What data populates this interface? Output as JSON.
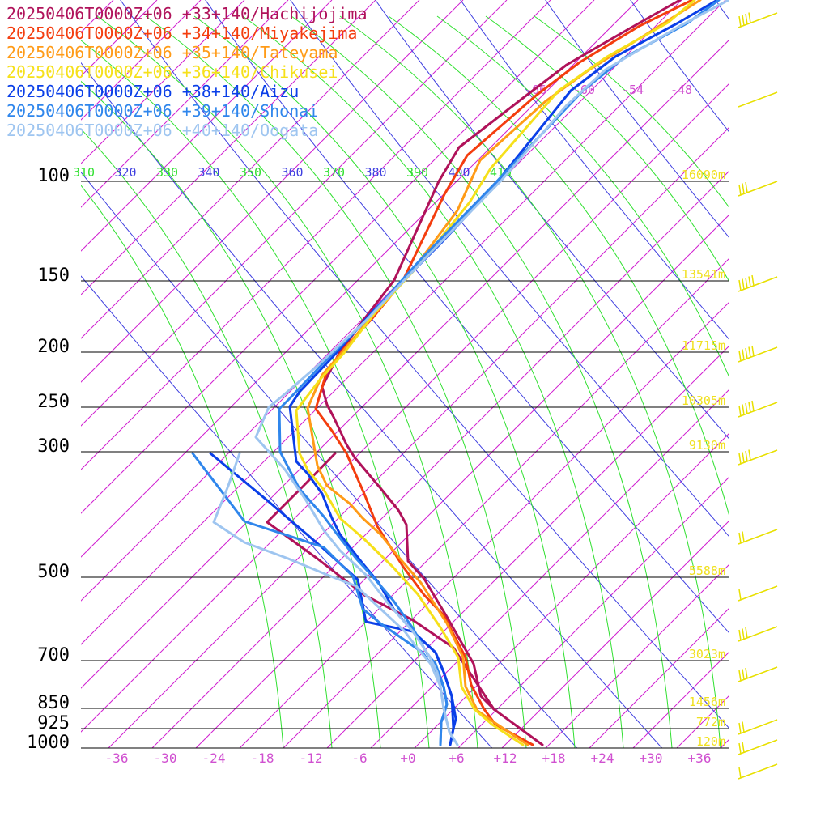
{
  "chart_data": {
    "type": "line",
    "legend": [
      {
        "label": "20250406T0000Z+06 +33+140/Hachijojima",
        "color": "#b0125a"
      },
      {
        "label": "20250406T0000Z+06 +34+140/Miyakejima",
        "color": "#f43d0e"
      },
      {
        "label": "20250406T0000Z+06 +35+140/Tateyama",
        "color": "#ff9b17"
      },
      {
        "label": "20250406T0000Z+06 +36+140/Chikusei",
        "color": "#f6e01a"
      },
      {
        "label": "20250406T0000Z+06 +38+140/Aizu",
        "color": "#0a3fe8"
      },
      {
        "label": "20250406T0000Z+06 +39+140/Shonai",
        "color": "#2f86ec"
      },
      {
        "label": "20250406T0000Z+06 +40+140/Oogata",
        "color": "#9ec5f0"
      }
    ],
    "pressure_levels": [
      {
        "p": 100,
        "label": "100",
        "height": "16090m"
      },
      {
        "p": 150,
        "label": "150",
        "height": "13541m"
      },
      {
        "p": 200,
        "label": "200",
        "height": "11715m"
      },
      {
        "p": 250,
        "label": "250",
        "height": "10305m"
      },
      {
        "p": 300,
        "label": "300",
        "height": "9130m"
      },
      {
        "p": 500,
        "label": "500",
        "height": "5588m"
      },
      {
        "p": 700,
        "label": "700",
        "height": "3023m"
      },
      {
        "p": 850,
        "label": "850",
        "height": "1456m"
      },
      {
        "p": 925,
        "label": "925",
        "height": "772m"
      },
      {
        "p": 1000,
        "label": "1000",
        "height": "120m"
      }
    ],
    "x_ticks": [
      "-36",
      "-30",
      "-24",
      "-18",
      "-12",
      "-6",
      "+0",
      "+6",
      "+12",
      "+18",
      "+24",
      "+30",
      "+36"
    ],
    "x_tick_values": [
      -36,
      -30,
      -24,
      -18,
      -12,
      -6,
      0,
      6,
      12,
      18,
      24,
      30,
      36
    ],
    "theta_labels": [
      "310",
      "320",
      "330",
      "340",
      "350",
      "360",
      "370",
      "380",
      "390",
      "400",
      "410"
    ],
    "upper_temp_labels": [
      "-66",
      "-60",
      "-54",
      "-48"
    ],
    "axis_colors": {
      "pressure_line": "#000000",
      "isotherm": "#d020d0",
      "dry_adiabat": "#4040e0",
      "moist_adiabat": "#30e030",
      "height_label": "#f0e020",
      "wind_barb": "#e8e000",
      "tick_label": "#d050d0"
    },
    "series": [
      {
        "name": "Hachijojima",
        "color": "#b0125a",
        "points": [
          [
            670,
            920
          ],
          [
            610,
            876
          ],
          [
            594,
            860
          ],
          [
            585,
            820
          ],
          [
            552,
            762
          ],
          [
            524,
            715
          ],
          [
            504,
            693
          ],
          [
            502,
            648
          ],
          [
            492,
            630
          ],
          [
            470,
            603
          ],
          [
            438,
            565
          ],
          [
            428,
            549
          ],
          [
            412,
            515
          ],
          [
            404,
            500
          ],
          [
            398,
            478
          ],
          [
            418,
            438
          ],
          [
            450,
            394
          ],
          [
            487,
            346
          ],
          [
            542,
            224
          ],
          [
            567,
            182
          ],
          [
            650,
            118
          ],
          [
            700,
            80
          ],
          [
            778,
            35
          ],
          [
            840,
            0
          ]
        ]
      },
      {
        "name": "Hachijojima-dew",
        "color": "#b0125a",
        "points": [
          [
            610,
            876
          ],
          [
            560,
            800
          ],
          [
            510,
            766
          ],
          [
            450,
            735
          ],
          [
            392,
            690
          ],
          [
            330,
            645
          ],
          [
            375,
            600
          ],
          [
            414,
            560
          ]
        ]
      },
      {
        "name": "Miyakejima",
        "color": "#f43d0e",
        "points": [
          [
            658,
            920
          ],
          [
            612,
            895
          ],
          [
            598,
            876
          ],
          [
            582,
            846
          ],
          [
            575,
            812
          ],
          [
            548,
            760
          ],
          [
            524,
            735
          ],
          [
            498,
            700
          ],
          [
            466,
            650
          ],
          [
            450,
            610
          ],
          [
            428,
            560
          ],
          [
            410,
            532
          ],
          [
            390,
            505
          ],
          [
            404,
            458
          ],
          [
            424,
            432
          ],
          [
            460,
            393
          ],
          [
            497,
            348
          ],
          [
            549,
            240
          ],
          [
            577,
            192
          ],
          [
            662,
            118
          ],
          [
            716,
            77
          ],
          [
            790,
            32
          ],
          [
            855,
            0
          ]
        ]
      },
      {
        "name": "Tateyama",
        "color": "#ff9b17",
        "points": [
          [
            652,
            920
          ],
          [
            610,
            892
          ],
          [
            590,
            878
          ],
          [
            575,
            848
          ],
          [
            572,
            812
          ],
          [
            552,
            770
          ],
          [
            520,
            720
          ],
          [
            494,
            690
          ],
          [
            470,
            660
          ],
          [
            448,
            640
          ],
          [
            432,
            622
          ],
          [
            404,
            600
          ],
          [
            392,
            575
          ],
          [
            380,
            504
          ],
          [
            398,
            463
          ],
          [
            422,
            436
          ],
          [
            458,
            392
          ],
          [
            505,
            340
          ],
          [
            565,
            260
          ],
          [
            593,
            198
          ],
          [
            674,
            125
          ],
          [
            728,
            86
          ],
          [
            802,
            40
          ],
          [
            865,
            0
          ]
        ]
      },
      {
        "name": "Chikusei",
        "color": "#f6e01a",
        "points": [
          [
            646,
            920
          ],
          [
            608,
            895
          ],
          [
            586,
            876
          ],
          [
            570,
            848
          ],
          [
            566,
            812
          ],
          [
            544,
            775
          ],
          [
            516,
            734
          ],
          [
            485,
            700
          ],
          [
            450,
            666
          ],
          [
            420,
            640
          ],
          [
            400,
            605
          ],
          [
            380,
            580
          ],
          [
            370,
            560
          ],
          [
            366,
            507
          ],
          [
            396,
            468
          ],
          [
            425,
            436
          ],
          [
            462,
            388
          ],
          [
            515,
            330
          ],
          [
            580,
            250
          ],
          [
            606,
            208
          ],
          [
            690,
            112
          ],
          [
            750,
            70
          ],
          [
            825,
            28
          ],
          [
            858,
            0
          ]
        ]
      },
      {
        "name": "Aizu",
        "color": "#0a3fe8",
        "points": [
          [
            556,
            920
          ],
          [
            560,
            900
          ],
          [
            563,
            888
          ],
          [
            558,
            860
          ],
          [
            548,
            830
          ],
          [
            538,
            806
          ],
          [
            510,
            780
          ],
          [
            486,
            752
          ],
          [
            468,
            720
          ],
          [
            448,
            696
          ],
          [
            420,
            660
          ],
          [
            410,
            640
          ],
          [
            398,
            610
          ],
          [
            380,
            585
          ],
          [
            366,
            570
          ],
          [
            358,
            502
          ],
          [
            370,
            484
          ],
          [
            410,
            442
          ],
          [
            460,
            385
          ],
          [
            545,
            300
          ],
          [
            605,
            236
          ],
          [
            705,
            112
          ],
          [
            760,
            70
          ],
          [
            838,
            28
          ],
          [
            886,
            0
          ]
        ]
      },
      {
        "name": "Aizu-dew",
        "color": "#0a3fe8",
        "points": [
          [
            556,
            920
          ],
          [
            560,
            900
          ],
          [
            558,
            860
          ],
          [
            548,
            830
          ],
          [
            538,
            806
          ],
          [
            510,
            780
          ],
          [
            452,
            768
          ],
          [
            442,
            716
          ],
          [
            400,
            678
          ],
          [
            330,
            618
          ],
          [
            260,
            560
          ]
        ]
      },
      {
        "name": "Shonai",
        "color": "#2f86ec",
        "points": [
          [
            544,
            920
          ],
          [
            545,
            892
          ],
          [
            552,
            870
          ],
          [
            548,
            848
          ],
          [
            538,
            820
          ],
          [
            528,
            808
          ],
          [
            510,
            776
          ],
          [
            486,
            742
          ],
          [
            462,
            714
          ],
          [
            440,
            690
          ],
          [
            418,
            662
          ],
          [
            400,
            638
          ],
          [
            370,
            604
          ],
          [
            346,
            558
          ],
          [
            345,
            505
          ],
          [
            358,
            492
          ],
          [
            398,
            450
          ],
          [
            450,
            398
          ],
          [
            520,
            320
          ],
          [
            608,
            230
          ],
          [
            720,
            112
          ],
          [
            770,
            72
          ],
          [
            850,
            28
          ],
          [
            888,
            0
          ]
        ]
      },
      {
        "name": "Shonai-dew",
        "color": "#2f86ec",
        "points": [
          [
            544,
            920
          ],
          [
            545,
            892
          ],
          [
            552,
            870
          ],
          [
            548,
            848
          ],
          [
            532,
            820
          ],
          [
            522,
            806
          ],
          [
            470,
            770
          ],
          [
            448,
            752
          ],
          [
            436,
            712
          ],
          [
            400,
            676
          ],
          [
            302,
            644
          ],
          [
            238,
            560
          ]
        ]
      },
      {
        "name": "Oogata",
        "color": "#9ec5f0",
        "points": [
          [
            565,
            920
          ],
          [
            555,
            904
          ],
          [
            548,
            875
          ],
          [
            544,
            848
          ],
          [
            540,
            830
          ],
          [
            530,
            810
          ],
          [
            510,
            780
          ],
          [
            480,
            746
          ],
          [
            452,
            710
          ],
          [
            420,
            680
          ],
          [
            400,
            655
          ],
          [
            378,
            618
          ],
          [
            352,
            580
          ],
          [
            316,
            540
          ],
          [
            332,
            503
          ],
          [
            348,
            490
          ],
          [
            392,
            452
          ],
          [
            452,
            396
          ],
          [
            530,
            314
          ],
          [
            620,
            222
          ],
          [
            700,
            130
          ],
          [
            748,
            86
          ],
          [
            840,
            32
          ],
          [
            900,
            0
          ]
        ]
      },
      {
        "name": "Oogata-dew",
        "color": "#9ec5f0",
        "points": [
          [
            565,
            920
          ],
          [
            555,
            904
          ],
          [
            548,
            875
          ],
          [
            544,
            848
          ],
          [
            532,
            820
          ],
          [
            515,
            800
          ],
          [
            500,
            780
          ],
          [
            470,
            752
          ],
          [
            440,
            724
          ],
          [
            404,
            710
          ],
          [
            356,
            690
          ],
          [
            302,
            670
          ],
          [
            264,
            645
          ],
          [
            282,
            600
          ],
          [
            296,
            560
          ]
        ]
      }
    ],
    "wind_barbs": [
      {
        "y": 22,
        "barbs": 4
      },
      {
        "y": 120,
        "barbs": 0
      },
      {
        "y": 230,
        "barbs": 3
      },
      {
        "y": 348,
        "barbs": 5
      },
      {
        "y": 435,
        "barbs": 5
      },
      {
        "y": 503,
        "barbs": 5
      },
      {
        "y": 562,
        "barbs": 4
      },
      {
        "y": 660,
        "barbs": 2
      },
      {
        "y": 730,
        "barbs": 1
      },
      {
        "y": 780,
        "barbs": 3
      },
      {
        "y": 830,
        "barbs": 3
      },
      {
        "y": 895,
        "barbs": 2
      },
      {
        "y": 920,
        "barbs": 2
      },
      {
        "y": 950,
        "barbs": 1
      }
    ]
  }
}
